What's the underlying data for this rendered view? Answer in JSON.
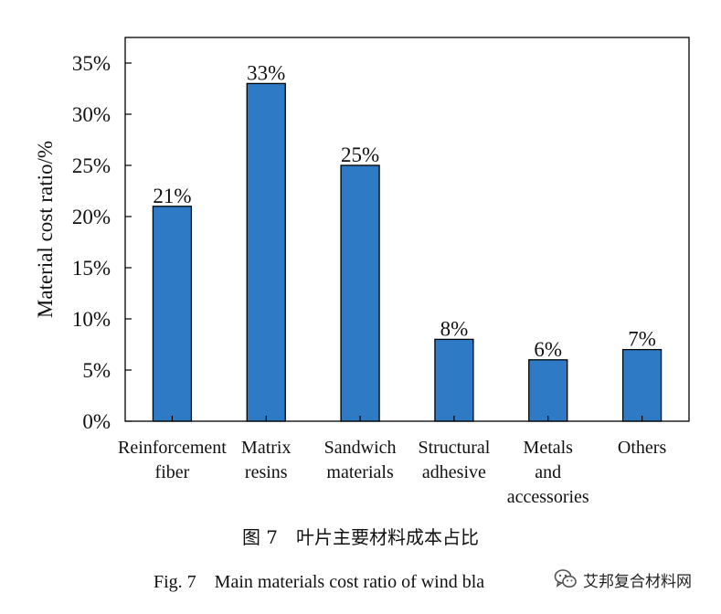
{
  "chart_data": {
    "type": "bar",
    "categories": [
      [
        "Reinforcement",
        "fiber"
      ],
      [
        "Matrix",
        "resins"
      ],
      [
        "Sandwich",
        "materials"
      ],
      [
        "Structural",
        "adhesive"
      ],
      [
        "Metals",
        "and",
        "accessories"
      ],
      [
        "Others"
      ]
    ],
    "values": [
      21,
      33,
      25,
      8,
      6,
      7
    ],
    "data_labels": [
      "21%",
      "33%",
      "25%",
      "8%",
      "6%",
      "7%"
    ],
    "ylabel": "Material cost ratio/%",
    "ylim": [
      0,
      37.5
    ],
    "yticks": [
      0,
      5,
      10,
      15,
      20,
      25,
      30,
      35
    ],
    "ytick_labels": [
      "0%",
      "5%",
      "10%",
      "15%",
      "20%",
      "25%",
      "30%",
      "35%"
    ],
    "bar_color": "#2e7ac4",
    "grid": false
  },
  "caption": {
    "chinese": "图 7　叶片主要材料成本占比",
    "english": "Fig. 7　Main materials cost ratio of wind bla"
  },
  "watermark": {
    "text": "艾邦复合材料网",
    "icon": "wechat-icon"
  }
}
